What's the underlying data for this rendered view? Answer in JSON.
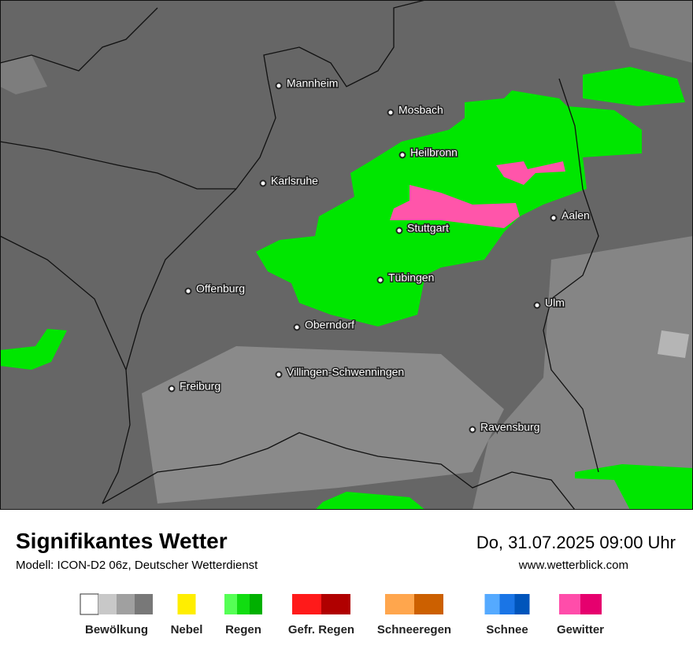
{
  "map": {
    "cities": [
      "Mannheim",
      "Mosbach",
      "Heilbronn",
      "Karlsruhe",
      "Aalen",
      "Stuttgart",
      "Tübingen",
      "Offenburg",
      "Ulm",
      "Oberndorf",
      "Villingen-Schwenningen",
      "Freiburg",
      "Ravensburg"
    ]
  },
  "footer": {
    "title": "Signifikantes Wetter",
    "model": "Modell: ICON-D2 06z, Deutscher Wetterdienst",
    "datetime": "Do, 31.07.2025 09:00 Uhr",
    "website": "www.wetterblick.com"
  },
  "legend": [
    {
      "label": "Bewölkung",
      "colors": [
        "#ffffff",
        "#c8c8c8",
        "#a0a0a0",
        "#787878"
      ]
    },
    {
      "label": "Nebel",
      "colors": [
        "#ffee00"
      ]
    },
    {
      "label": "Regen",
      "colors": [
        "#55ff55",
        "#11dd11",
        "#00b000"
      ]
    },
    {
      "label": "Gefr. Regen",
      "colors": [
        "#ff1a1a",
        "#b00000"
      ]
    },
    {
      "label": "Schneeregen",
      "colors": [
        "#ffa64d",
        "#cc6000"
      ]
    },
    {
      "label": "Schnee",
      "colors": [
        "#55aaff",
        "#1a75e6",
        "#0055bb"
      ]
    },
    {
      "label": "Gewitter",
      "colors": [
        "#ff4daa",
        "#e6006e"
      ]
    }
  ]
}
